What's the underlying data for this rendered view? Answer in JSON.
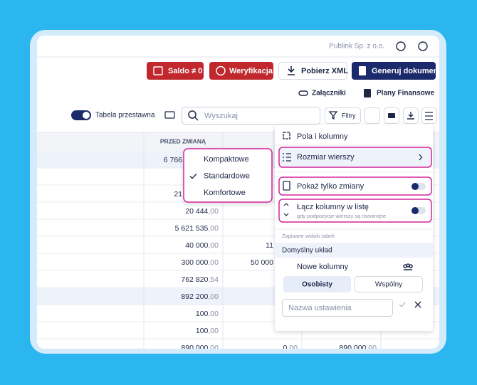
{
  "header": {
    "company": "Publink Sp. z o.o."
  },
  "toolbar": {
    "buttons": [
      "Saldo ≠ 0",
      "Weryfikacja",
      "Pobierz XML",
      "Generuj dokument"
    ],
    "links": [
      "Załączniki",
      "Plany Finansowe"
    ],
    "pivot_toggle": "Tabela przestawna",
    "search_placeholder": "Wyszukaj",
    "filters": "Filtry"
  },
  "table": {
    "header": "PRZED ZMIANĄ",
    "rows": [
      {
        "shaded": true,
        "cells": [
          {
            "int": "6 766"
          },
          null,
          null
        ]
      },
      {
        "shaded": false,
        "cells": [
          null,
          null,
          null
        ]
      },
      {
        "shaded": false,
        "cells": [
          {
            "int": "21"
          },
          null,
          null
        ]
      },
      {
        "shaded": false,
        "cells": [
          {
            "int": "20 444",
            "dec": ",00"
          },
          null,
          null
        ]
      },
      {
        "shaded": false,
        "cells": [
          {
            "int": "5 621 535",
            "dec": ",00"
          },
          null,
          null
        ]
      },
      {
        "shaded": false,
        "cells": [
          {
            "int": "40 000",
            "dec": ",00"
          },
          {
            "int": "11"
          },
          null
        ]
      },
      {
        "shaded": false,
        "cells": [
          {
            "int": "300 000",
            "dec": ",00"
          },
          {
            "int": "50 000"
          },
          null
        ]
      },
      {
        "shaded": false,
        "cells": [
          {
            "int": "762 820",
            "dec": ",54"
          },
          null,
          null
        ]
      },
      {
        "shaded": true,
        "cells": [
          {
            "int": "892 200",
            "dec": ",00"
          },
          null,
          null
        ]
      },
      {
        "shaded": false,
        "cells": [
          {
            "int": "100",
            "dec": ",00"
          },
          null,
          null
        ]
      },
      {
        "shaded": false,
        "cells": [
          {
            "int": "100",
            "dec": ",00"
          },
          null,
          null
        ]
      },
      {
        "shaded": false,
        "cells": [
          {
            "int": "890 000",
            "dec": ",00"
          },
          {
            "int": "0",
            "dec": ",00"
          },
          {
            "int": "890 000",
            "dec": ",00"
          }
        ]
      }
    ]
  },
  "row_size_menu": {
    "options": [
      "Kompaktowe",
      "Standardowe",
      "Komfortowe"
    ],
    "selected": 1
  },
  "settings_panel": {
    "fields": "Pola i kolumny",
    "row_size": "Rozmiar wierszy",
    "show_changes": "Pokaż tylko zmiany",
    "merge_columns": "Łącz kolumny w listę",
    "merge_columns_hint": "gdy podpozycje wierszy są rozwinięte",
    "saved_views_label": "Zapisane widoki tabeli",
    "default_view": "Domyślny układ",
    "new_columns": "Nowe kolumny",
    "tabs": [
      "Osobisty",
      "Wspólny"
    ],
    "name_placeholder": "Nazwa ustawienia"
  }
}
